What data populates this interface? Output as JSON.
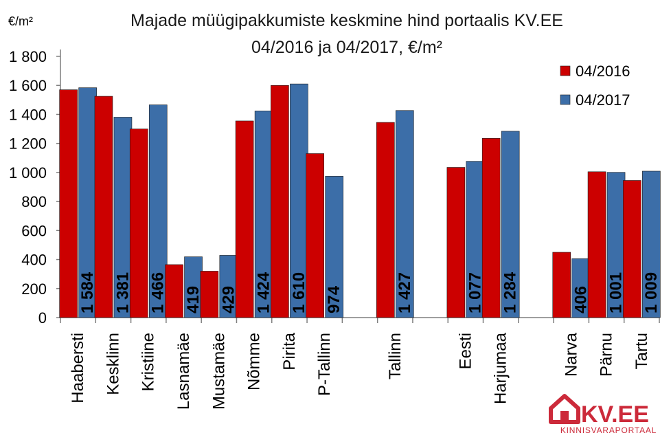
{
  "chart_data": {
    "type": "bar",
    "title": "Majade müügipakkumiste keskmine hind portaalis KV.EE",
    "subtitle": "04/2016 ja 04/2017, €/m²",
    "ylabel": "€/m²",
    "xlabel": "",
    "ylim": [
      0,
      1800
    ],
    "yticks": [
      0,
      200,
      400,
      600,
      800,
      1000,
      1200,
      1400,
      1600,
      1800
    ],
    "ytick_labels": [
      "0",
      "200",
      "400",
      "600",
      "800",
      "1 000",
      "1 200",
      "1 400",
      "1 600",
      "1 800"
    ],
    "grid": false,
    "legend_position": "top-right",
    "categories": [
      "Haabersti",
      "Kesklinn",
      "Kristiine",
      "Lasnamäe",
      "Mustamäe",
      "Nõmme",
      "Pirita",
      "P-Tallinn",
      "",
      "Tallinn",
      "",
      "Eesti",
      "Harjumaa",
      "",
      "Narva",
      "Pärnu",
      "Tartu"
    ],
    "series": [
      {
        "name": "04/2016",
        "color": "#cc0000",
        "values": [
          1570,
          1525,
          1300,
          365,
          320,
          1355,
          1600,
          1130,
          null,
          1345,
          null,
          1035,
          1235,
          null,
          450,
          1005,
          945
        ]
      },
      {
        "name": "04/2017",
        "color": "#3c6ea8",
        "values": [
          1584,
          1381,
          1466,
          419,
          429,
          1424,
          1610,
          974,
          null,
          1427,
          null,
          1077,
          1284,
          null,
          406,
          1001,
          1009
        ]
      }
    ],
    "data_labels": [
      "1 584",
      "1 381",
      "1 466",
      "419",
      "429",
      "1 424",
      "1 610",
      "974",
      "",
      "1 427",
      "",
      "1 077",
      "1 284",
      "",
      "406",
      "1 001",
      "1 009"
    ]
  },
  "logo": {
    "text": "KV.EE",
    "subtitle": "KINNISVARAPORTAAL",
    "color": "#cc2a3a"
  }
}
